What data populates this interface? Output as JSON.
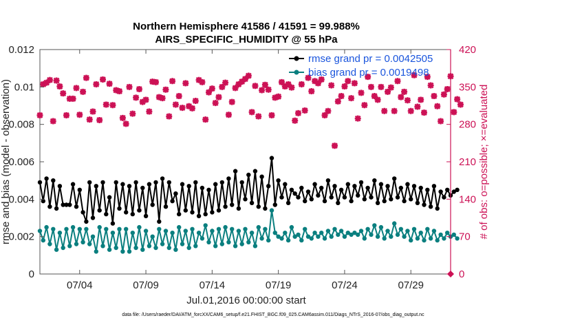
{
  "chart_data": {
    "type": "line",
    "title": "Northern Hemisphere 41586 / 41591 = 99.988%",
    "subtitle": "AIRS_SPECIFIC_HUMIDITY @ 55 hPa",
    "xlabel": "Jul.01,2016 00:00:00 start",
    "ylabel_left": "rmse and bias (model - observation)",
    "ylabel_right": "# of obs: o=possible; ×=evaluated",
    "xlim": [
      1.0,
      32.0
    ],
    "ylim_left": [
      0,
      0.012
    ],
    "ylim_right": [
      0,
      420
    ],
    "x_ticks": [
      {
        "value": 4,
        "label": "07/04"
      },
      {
        "value": 9,
        "label": "07/09"
      },
      {
        "value": 14,
        "label": "07/14"
      },
      {
        "value": 19,
        "label": "07/19"
      },
      {
        "value": 24,
        "label": "07/24"
      },
      {
        "value": 29,
        "label": "07/29"
      }
    ],
    "y_left_ticks": [
      {
        "value": 0,
        "label": "0"
      },
      {
        "value": 0.002,
        "label": "0.002"
      },
      {
        "value": 0.004,
        "label": "0.004"
      },
      {
        "value": 0.006,
        "label": "0.006"
      },
      {
        "value": 0.008,
        "label": "0.008"
      },
      {
        "value": 0.01,
        "label": "0.01"
      },
      {
        "value": 0.012,
        "label": "0.012"
      }
    ],
    "y_right_ticks": [
      {
        "value": 0,
        "label": "0"
      },
      {
        "value": 70,
        "label": "70"
      },
      {
        "value": 140,
        "label": "140"
      },
      {
        "value": 210,
        "label": "210"
      },
      {
        "value": 280,
        "label": "280"
      },
      {
        "value": 350,
        "label": "350"
      },
      {
        "value": 420,
        "label": "420"
      }
    ],
    "x_start": 1.0,
    "x_step": 0.25,
    "series": [
      {
        "name": "rmse grand pr = 0.0042505",
        "axis": "left",
        "color": "#000000",
        "values": [
          0.0049,
          0.0039,
          0.0051,
          0.0036,
          0.005,
          0.0035,
          0.0047,
          0.0037,
          0.0037,
          0.0037,
          0.0048,
          0.0036,
          0.0045,
          0.0033,
          0.0028,
          0.0049,
          0.003,
          0.0047,
          0.0034,
          0.0049,
          0.0032,
          0.0041,
          0.0027,
          0.0049,
          0.0035,
          0.0048,
          0.0033,
          0.0047,
          0.0032,
          0.0049,
          0.0034,
          0.0046,
          0.0031,
          0.0048,
          0.0037,
          0.0049,
          0.0028,
          0.0051,
          0.0036,
          0.0049,
          0.0039,
          0.0043,
          0.0032,
          0.0048,
          0.0034,
          0.0047,
          0.0033,
          0.0049,
          0.0031,
          0.0046,
          0.0032,
          0.0045,
          0.0033,
          0.0048,
          0.0034,
          0.0049,
          0.0036,
          0.0051,
          0.0037,
          0.0055,
          0.0035,
          0.0049,
          0.004,
          0.0053,
          0.0038,
          0.0055,
          0.0036,
          0.0052,
          0.0035,
          0.0047,
          0.0062,
          0.0037,
          0.005,
          0.0041,
          0.0048,
          0.0038,
          0.0045,
          0.0043,
          0.0041,
          0.0046,
          0.0039,
          0.0044,
          0.004,
          0.0048,
          0.0042,
          0.0046,
          0.0039,
          0.005,
          0.0041,
          0.0047,
          0.0038,
          0.0045,
          0.0041,
          0.0048,
          0.0039,
          0.0047,
          0.0042,
          0.0049,
          0.004,
          0.0046,
          0.0041,
          0.005,
          0.0038,
          0.0048,
          0.0039,
          0.0047,
          0.004,
          0.0051,
          0.0041,
          0.0046,
          0.0039,
          0.0048,
          0.004,
          0.0047,
          0.0038,
          0.0046,
          0.0037,
          0.0045,
          0.0036,
          0.0047,
          0.0035,
          0.0044,
          0.0041,
          0.0045,
          0.0042,
          0.0044,
          0.0045
        ]
      },
      {
        "name": "bias grand pr = 0.0019498",
        "axis": "left",
        "color": "#0a7f7f",
        "values": [
          0.0023,
          0.0018,
          0.0025,
          0.0016,
          0.0024,
          0.0013,
          0.0022,
          0.0014,
          0.0024,
          0.0015,
          0.0025,
          0.0016,
          0.0024,
          0.0017,
          0.0024,
          0.0016,
          0.002,
          0.0012,
          0.0025,
          0.0015,
          0.0024,
          0.0013,
          0.0022,
          0.0014,
          0.0024,
          0.0012,
          0.0024,
          0.0012,
          0.0022,
          0.0014,
          0.0025,
          0.0013,
          0.0023,
          0.0015,
          0.002,
          0.0014,
          0.0024,
          0.0016,
          0.0023,
          0.0014,
          0.0022,
          0.0013,
          0.0025,
          0.0016,
          0.0023,
          0.0014,
          0.0024,
          0.0015,
          0.0022,
          0.0019,
          0.0026,
          0.0017,
          0.0023,
          0.0015,
          0.0024,
          0.0016,
          0.0025,
          0.0017,
          0.0024,
          0.0015,
          0.0023,
          0.0016,
          0.0024,
          0.0017,
          0.0022,
          0.0015,
          0.0025,
          0.0019,
          0.0024,
          0.0018,
          0.0034,
          0.0022,
          0.002,
          0.0019,
          0.0022,
          0.0018,
          0.0025,
          0.002,
          0.0021,
          0.0018,
          0.0024,
          0.002,
          0.0019,
          0.0022,
          0.002,
          0.0022,
          0.0019,
          0.0023,
          0.002,
          0.0024,
          0.0021,
          0.0023,
          0.002,
          0.0022,
          0.0021,
          0.0022,
          0.0021,
          0.0023,
          0.0019,
          0.0024,
          0.0021,
          0.0026,
          0.002,
          0.0025,
          0.0019,
          0.0023,
          0.002,
          0.0027,
          0.0021,
          0.0024,
          0.002,
          0.0023,
          0.0018,
          0.0024,
          0.0019,
          0.0022,
          0.0018,
          0.0024,
          0.0019,
          0.0023,
          0.0018,
          0.0021,
          0.0019,
          0.0022,
          0.002,
          0.0021,
          0.0019
        ]
      },
      {
        "name": "obs evaluated",
        "axis": "right",
        "color": "#cc1155",
        "marker": "x",
        "values": [
          297,
          355,
          358,
          363,
          286,
          362,
          351,
          338,
          297,
          328,
          328,
          348,
          298,
          341,
          367,
          289,
          304,
          355,
          288,
          364,
          317,
          356,
          316,
          344,
          342,
          292,
          281,
          350,
          300,
          330,
          346,
          322,
          326,
          304,
          360,
          359,
          331,
          329,
          345,
          295,
          361,
          317,
          333,
          311,
          357,
          314,
          310,
          324,
          363,
          359,
          289,
          340,
          347,
          320,
          331,
          350,
          358,
          298,
          322,
          348,
          355,
          360,
          365,
          371,
          303,
          352,
          295,
          344,
          354,
          345,
          297,
          330,
          332,
          359,
          351,
          355,
          349,
          287,
          301,
          355,
          306,
          367,
          342,
          361,
          357,
          364,
          297,
          305,
          353,
          240,
          323,
          333,
          351,
          361,
          329,
          357,
          291,
          339,
          316,
          369,
          350,
          333,
          326,
          350,
          305,
          341,
          349,
          305,
          361,
          331,
          341,
          325,
          305,
          372,
          313,
          326,
          302,
          369,
          353,
          333,
          314,
          286,
          336,
          346,
          370,
          303,
          327,
          317
        ]
      }
    ],
    "extra_markers": [
      {
        "x": 32.0,
        "value": 0,
        "axis": "right",
        "label": "0"
      }
    ],
    "legend": {
      "placement": "top-right",
      "entries": [
        "rmse grand pr = 0.0042505",
        "bias grand pr = 0.0019498"
      ]
    },
    "grid": false
  },
  "footnote": "data file: /Users/raeder/DAI/ATM_forcXX/CAM6_setup/f.e21.FHIST_BGC.f09_025.CAM6assim.011/Diags_NTrS_2016-07/obs_diag_output.nc"
}
